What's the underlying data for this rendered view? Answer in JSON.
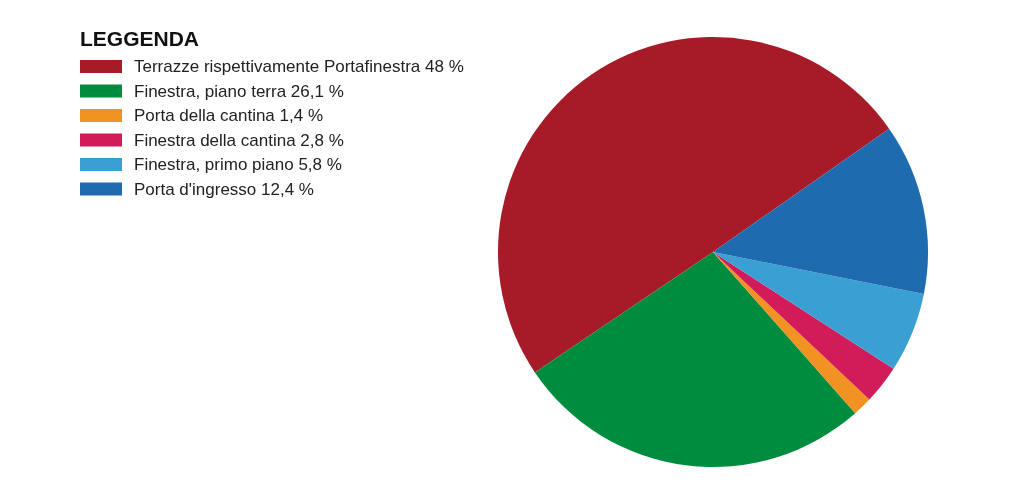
{
  "chart_data": {
    "type": "pie",
    "legend_title": "LEGGENDA",
    "legend": "top left",
    "categories": [
      "Terrazze rispettivamente Portafinestra",
      "Finestra, piano terra",
      "Porta della cantina",
      "Finestra della cantina",
      "Finestra, primo piano",
      "Porta d'ingresso"
    ],
    "values": [
      48,
      26.1,
      1.4,
      2.8,
      5.8,
      12.4
    ],
    "value_labels": [
      "48 %",
      "26,1 %",
      "1,4 %",
      "2,8 %",
      "5,8 %",
      "12,4 %"
    ],
    "colors": [
      "#a71b29",
      "#008c3e",
      "#f29222",
      "#d21c5a",
      "#3aa0d4",
      "#1f6bb0"
    ]
  }
}
